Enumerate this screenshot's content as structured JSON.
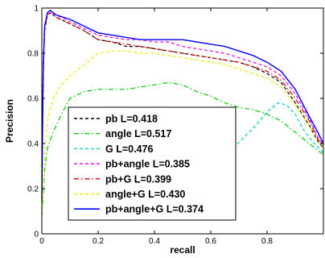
{
  "chart_data": {
    "type": "line",
    "title": "",
    "xlabel": "recall",
    "ylabel": "Precision",
    "xlim": [
      0,
      1
    ],
    "ylim": [
      0,
      1
    ],
    "xticks": [
      "0",
      "0.2",
      "0.4",
      "0.6",
      "0.8"
    ],
    "yticks": [
      "0",
      "0.2",
      "0.4",
      "0.6",
      "0.8",
      "1"
    ],
    "grid": false,
    "legend_position": "lower-left",
    "series": [
      {
        "name": "pb L=0.418",
        "color": "#000000",
        "style": "dashed",
        "x": [
          0.0,
          0.005,
          0.01,
          0.02,
          0.03,
          0.05,
          0.1,
          0.15,
          0.2,
          0.25,
          0.3,
          0.35,
          0.4,
          0.45,
          0.5,
          0.55,
          0.6,
          0.65,
          0.7,
          0.75,
          0.8,
          0.85,
          0.9,
          0.95,
          0.98,
          1.0
        ],
        "y": [
          0.3,
          0.75,
          0.9,
          0.97,
          0.98,
          0.96,
          0.93,
          0.9,
          0.86,
          0.85,
          0.83,
          0.83,
          0.82,
          0.81,
          0.8,
          0.79,
          0.78,
          0.77,
          0.76,
          0.74,
          0.71,
          0.67,
          0.58,
          0.48,
          0.41,
          0.38
        ]
      },
      {
        "name": "angle L=0.517",
        "color": "#00cc00",
        "style": "dashdot",
        "x": [
          0.0,
          0.005,
          0.01,
          0.02,
          0.04,
          0.07,
          0.1,
          0.15,
          0.2,
          0.25,
          0.3,
          0.35,
          0.4,
          0.45,
          0.5,
          0.55,
          0.6,
          0.65,
          0.7,
          0.75,
          0.8,
          0.85,
          0.9,
          0.95,
          1.0
        ],
        "y": [
          0.08,
          0.18,
          0.28,
          0.38,
          0.45,
          0.53,
          0.6,
          0.63,
          0.64,
          0.64,
          0.64,
          0.65,
          0.66,
          0.67,
          0.66,
          0.63,
          0.61,
          0.58,
          0.56,
          0.55,
          0.53,
          0.5,
          0.45,
          0.4,
          0.35
        ]
      },
      {
        "name": "G L=0.476",
        "color": "#00cccc",
        "style": "dashed",
        "x": [
          0.68,
          0.72,
          0.76,
          0.8,
          0.84,
          0.87,
          0.9,
          0.93,
          0.96,
          1.0
        ],
        "y": [
          0.38,
          0.43,
          0.48,
          0.54,
          0.58,
          0.57,
          0.53,
          0.46,
          0.41,
          0.36
        ]
      },
      {
        "name": "pb+angle L=0.385",
        "color": "#ee00ee",
        "style": "dashed",
        "x": [
          0.0,
          0.005,
          0.01,
          0.02,
          0.03,
          0.05,
          0.1,
          0.15,
          0.2,
          0.25,
          0.3,
          0.35,
          0.4,
          0.45,
          0.5,
          0.55,
          0.6,
          0.65,
          0.7,
          0.75,
          0.8,
          0.85,
          0.9,
          0.95,
          0.98,
          1.0
        ],
        "y": [
          0.2,
          0.7,
          0.9,
          0.97,
          0.98,
          0.97,
          0.94,
          0.91,
          0.88,
          0.87,
          0.86,
          0.86,
          0.85,
          0.85,
          0.83,
          0.82,
          0.81,
          0.8,
          0.78,
          0.76,
          0.74,
          0.7,
          0.62,
          0.51,
          0.43,
          0.39
        ]
      },
      {
        "name": "pb+G L=0.399",
        "color": "#cc0000",
        "style": "dashdot",
        "x": [
          0.0,
          0.005,
          0.01,
          0.02,
          0.03,
          0.05,
          0.1,
          0.15,
          0.2,
          0.25,
          0.3,
          0.35,
          0.4,
          0.45,
          0.5,
          0.55,
          0.6,
          0.65,
          0.7,
          0.75,
          0.8,
          0.85,
          0.9,
          0.95,
          0.98,
          1.0
        ],
        "y": [
          0.25,
          0.72,
          0.9,
          0.97,
          0.98,
          0.96,
          0.93,
          0.9,
          0.86,
          0.85,
          0.84,
          0.83,
          0.82,
          0.81,
          0.8,
          0.79,
          0.78,
          0.77,
          0.76,
          0.74,
          0.72,
          0.68,
          0.6,
          0.5,
          0.42,
          0.39
        ]
      },
      {
        "name": "angle+G L=0.430",
        "color": "#eeee00",
        "style": "dashed",
        "x": [
          0.0,
          0.005,
          0.01,
          0.02,
          0.04,
          0.07,
          0.1,
          0.15,
          0.2,
          0.25,
          0.3,
          0.35,
          0.4,
          0.45,
          0.5,
          0.55,
          0.6,
          0.65,
          0.7,
          0.75,
          0.8,
          0.85,
          0.9,
          0.95,
          0.98,
          1.0
        ],
        "y": [
          0.1,
          0.2,
          0.35,
          0.5,
          0.6,
          0.66,
          0.7,
          0.75,
          0.8,
          0.81,
          0.81,
          0.8,
          0.8,
          0.79,
          0.78,
          0.77,
          0.76,
          0.75,
          0.73,
          0.71,
          0.69,
          0.65,
          0.57,
          0.48,
          0.41,
          0.38
        ]
      },
      {
        "name": "pb+angle+G L=0.374",
        "color": "#0000ff",
        "style": "solid",
        "x": [
          0.0,
          0.005,
          0.01,
          0.02,
          0.03,
          0.05,
          0.1,
          0.15,
          0.2,
          0.25,
          0.3,
          0.35,
          0.4,
          0.45,
          0.5,
          0.55,
          0.6,
          0.65,
          0.7,
          0.75,
          0.8,
          0.85,
          0.9,
          0.95,
          0.98,
          1.0
        ],
        "y": [
          0.15,
          0.75,
          0.92,
          0.98,
          0.99,
          0.97,
          0.95,
          0.92,
          0.89,
          0.88,
          0.87,
          0.86,
          0.86,
          0.86,
          0.86,
          0.85,
          0.84,
          0.83,
          0.81,
          0.79,
          0.76,
          0.72,
          0.64,
          0.52,
          0.45,
          0.4
        ]
      }
    ]
  }
}
